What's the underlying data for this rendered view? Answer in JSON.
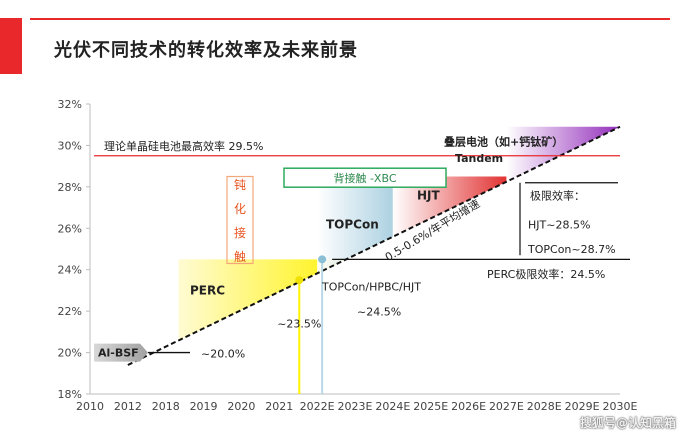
{
  "page": {
    "title": "光伏不同技术的转化效率及未来前景",
    "watermark": "搜狐号@认知黑箱"
  },
  "colors": {
    "accent_red": "#e8282b",
    "perc_yellow": "#fff200",
    "topcon_blue": "#b9d8e6",
    "hjt_red": "#e63232",
    "tandem_purple": "#9b30c0",
    "green_box": "#2eaa5e"
  },
  "chart_data": {
    "type": "area",
    "title": "光伏不同技术的转化效率及未来前景",
    "x_categories": [
      "2010",
      "2012",
      "2018",
      "2019",
      "2020",
      "2021",
      "2022E",
      "2023E",
      "2024E",
      "2025E",
      "2026E",
      "2027E",
      "2028E",
      "2029E",
      "2030E"
    ],
    "y_ticks": [
      "18%",
      "20%",
      "22%",
      "24%",
      "26%",
      "28%",
      "30%",
      "32%"
    ],
    "ylim": [
      18,
      32
    ],
    "trend_line": {
      "x": [
        "2012",
        "2030E"
      ],
      "y": [
        19.4,
        30.9
      ]
    },
    "regions": [
      {
        "name": "PERC",
        "x": [
          "2019",
          "2022E"
        ],
        "level": 24.5
      },
      {
        "name": "TOPCon",
        "x": [
          "2022E",
          "2024E"
        ],
        "level": 28.1
      },
      {
        "name": "HJT",
        "x": [
          "2024E",
          "2027E"
        ],
        "level": 28.5
      },
      {
        "name": "Tandem",
        "x": [
          "2027E",
          "2030E"
        ],
        "level": 30.9
      }
    ],
    "labels": {
      "theory_limit": "理论单晶硅电池最高效率 29.5%",
      "passivation": [
        "钝",
        "化",
        "接",
        "触"
      ],
      "back_contact": "背接触 -XBC",
      "stacked": "叠层电池（如+钙钛矿）",
      "tandem": "Tandem",
      "hjt": "HJT",
      "topcon": "TOPCon",
      "perc": "PERC",
      "albsf": "Al-BSF",
      "growth": "0.5-0.6%/年平均增速",
      "limit_title": "极限效率：",
      "hjt_limit": "HJT~28.5%",
      "topcon_limit": "TOPCon~28.7%",
      "perc_limit": "PERC极限效率：24.5%",
      "albsf_eff": "~20.0%",
      "perc_eff": "~23.5%",
      "topcon_group": "TOPCon/HPBC/HJT",
      "topcon_group_eff": "~24.5%"
    },
    "values": {
      "theory_limit": 29.5,
      "albsf": 20.0,
      "perc": 23.5,
      "topcon_group": 24.5,
      "perc_limit": 24.5,
      "hjt_limit": 28.5,
      "topcon_limit": 28.7
    }
  }
}
